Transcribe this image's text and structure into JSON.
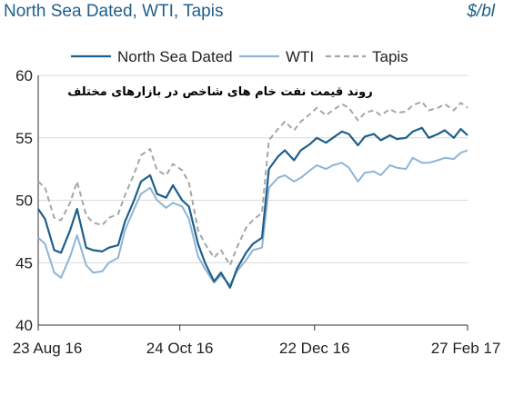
{
  "chart_data": {
    "type": "line",
    "title": "North Sea Dated, WTI, Tapis",
    "unit": "$/bl",
    "annotation": "روند قیمت نفت خام های شاخص در بازارهای مختلف",
    "ylim": [
      40,
      60
    ],
    "yticks": [
      40,
      45,
      50,
      55,
      60
    ],
    "x_start": "2016-08-23",
    "x_end": "2017-02-27",
    "xticks": [
      {
        "date": "2016-08-23",
        "label": "23 Aug 16"
      },
      {
        "date": "2016-10-24",
        "label": "24 Oct 16"
      },
      {
        "date": "2016-12-22",
        "label": "22 Dec 16"
      },
      {
        "date": "2017-02-27",
        "label": "27 Feb 17"
      }
    ],
    "grid": "horizontal",
    "legend_position": "top",
    "x": [
      "2016-08-23",
      "2016-08-26",
      "2016-08-30",
      "2016-09-02",
      "2016-09-06",
      "2016-09-09",
      "2016-09-13",
      "2016-09-16",
      "2016-09-20",
      "2016-09-23",
      "2016-09-27",
      "2016-09-30",
      "2016-10-04",
      "2016-10-07",
      "2016-10-11",
      "2016-10-14",
      "2016-10-18",
      "2016-10-21",
      "2016-10-25",
      "2016-10-28",
      "2016-11-01",
      "2016-11-04",
      "2016-11-08",
      "2016-11-11",
      "2016-11-15",
      "2016-11-18",
      "2016-11-22",
      "2016-11-25",
      "2016-11-29",
      "2016-12-02",
      "2016-12-06",
      "2016-12-09",
      "2016-12-13",
      "2016-12-16",
      "2016-12-20",
      "2016-12-23",
      "2016-12-27",
      "2016-12-30",
      "2017-01-03",
      "2017-01-06",
      "2017-01-10",
      "2017-01-13",
      "2017-01-17",
      "2017-01-20",
      "2017-01-24",
      "2017-01-27",
      "2017-01-31",
      "2017-02-03",
      "2017-02-07",
      "2017-02-10",
      "2017-02-14",
      "2017-02-17",
      "2017-02-21",
      "2017-02-24",
      "2017-02-27"
    ],
    "series": [
      {
        "name": "North Sea Dated",
        "color": "#1f5f8b",
        "dash": "solid",
        "values": [
          49.3,
          48.5,
          46.0,
          45.8,
          47.6,
          49.3,
          46.2,
          46.0,
          45.9,
          46.2,
          46.4,
          48.3,
          50.0,
          51.5,
          52.0,
          50.5,
          50.2,
          51.2,
          50.0,
          49.5,
          46.5,
          45.0,
          43.5,
          44.2,
          43.0,
          44.5,
          45.8,
          46.5,
          47.0,
          52.5,
          53.5,
          54.0,
          53.2,
          54.0,
          54.5,
          55.0,
          54.6,
          55.0,
          55.5,
          55.3,
          54.4,
          55.1,
          55.3,
          54.8,
          55.2,
          54.9,
          55.0,
          55.5,
          55.8,
          55.0,
          55.3,
          55.6,
          55.0,
          55.7,
          55.2
        ]
      },
      {
        "name": "WTI",
        "color": "#8fb4d4",
        "dash": "solid",
        "values": [
          47.0,
          46.5,
          44.2,
          43.8,
          45.5,
          47.2,
          44.8,
          44.2,
          44.3,
          45.0,
          45.4,
          47.6,
          49.3,
          50.5,
          51.0,
          50.0,
          49.4,
          49.8,
          49.5,
          48.5,
          45.5,
          44.5,
          43.4,
          44.0,
          43.2,
          44.3,
          45.2,
          46.0,
          46.2,
          51.0,
          51.8,
          52.0,
          51.5,
          51.8,
          52.4,
          52.8,
          52.5,
          52.8,
          53.0,
          52.6,
          51.5,
          52.2,
          52.3,
          52.0,
          52.8,
          52.6,
          52.5,
          53.4,
          53.0,
          53.0,
          53.2,
          53.4,
          53.3,
          53.8,
          54.0
        ]
      },
      {
        "name": "Tapis",
        "color": "#a6a6a6",
        "dash": "dashed",
        "values": [
          51.5,
          51.0,
          48.6,
          48.4,
          49.8,
          51.5,
          48.8,
          48.2,
          48.0,
          48.6,
          48.9,
          50.4,
          52.1,
          53.6,
          54.1,
          52.4,
          52.0,
          52.9,
          52.4,
          51.4,
          47.6,
          46.5,
          45.4,
          46.0,
          44.8,
          46.2,
          47.8,
          48.4,
          49.0,
          54.8,
          55.7,
          56.3,
          55.6,
          56.3,
          56.9,
          57.4,
          56.8,
          57.2,
          57.7,
          57.4,
          56.4,
          57.0,
          57.2,
          56.8,
          57.3,
          57.0,
          57.1,
          57.6,
          57.9,
          57.2,
          57.4,
          57.7,
          57.2,
          57.8,
          57.4
        ]
      }
    ]
  }
}
